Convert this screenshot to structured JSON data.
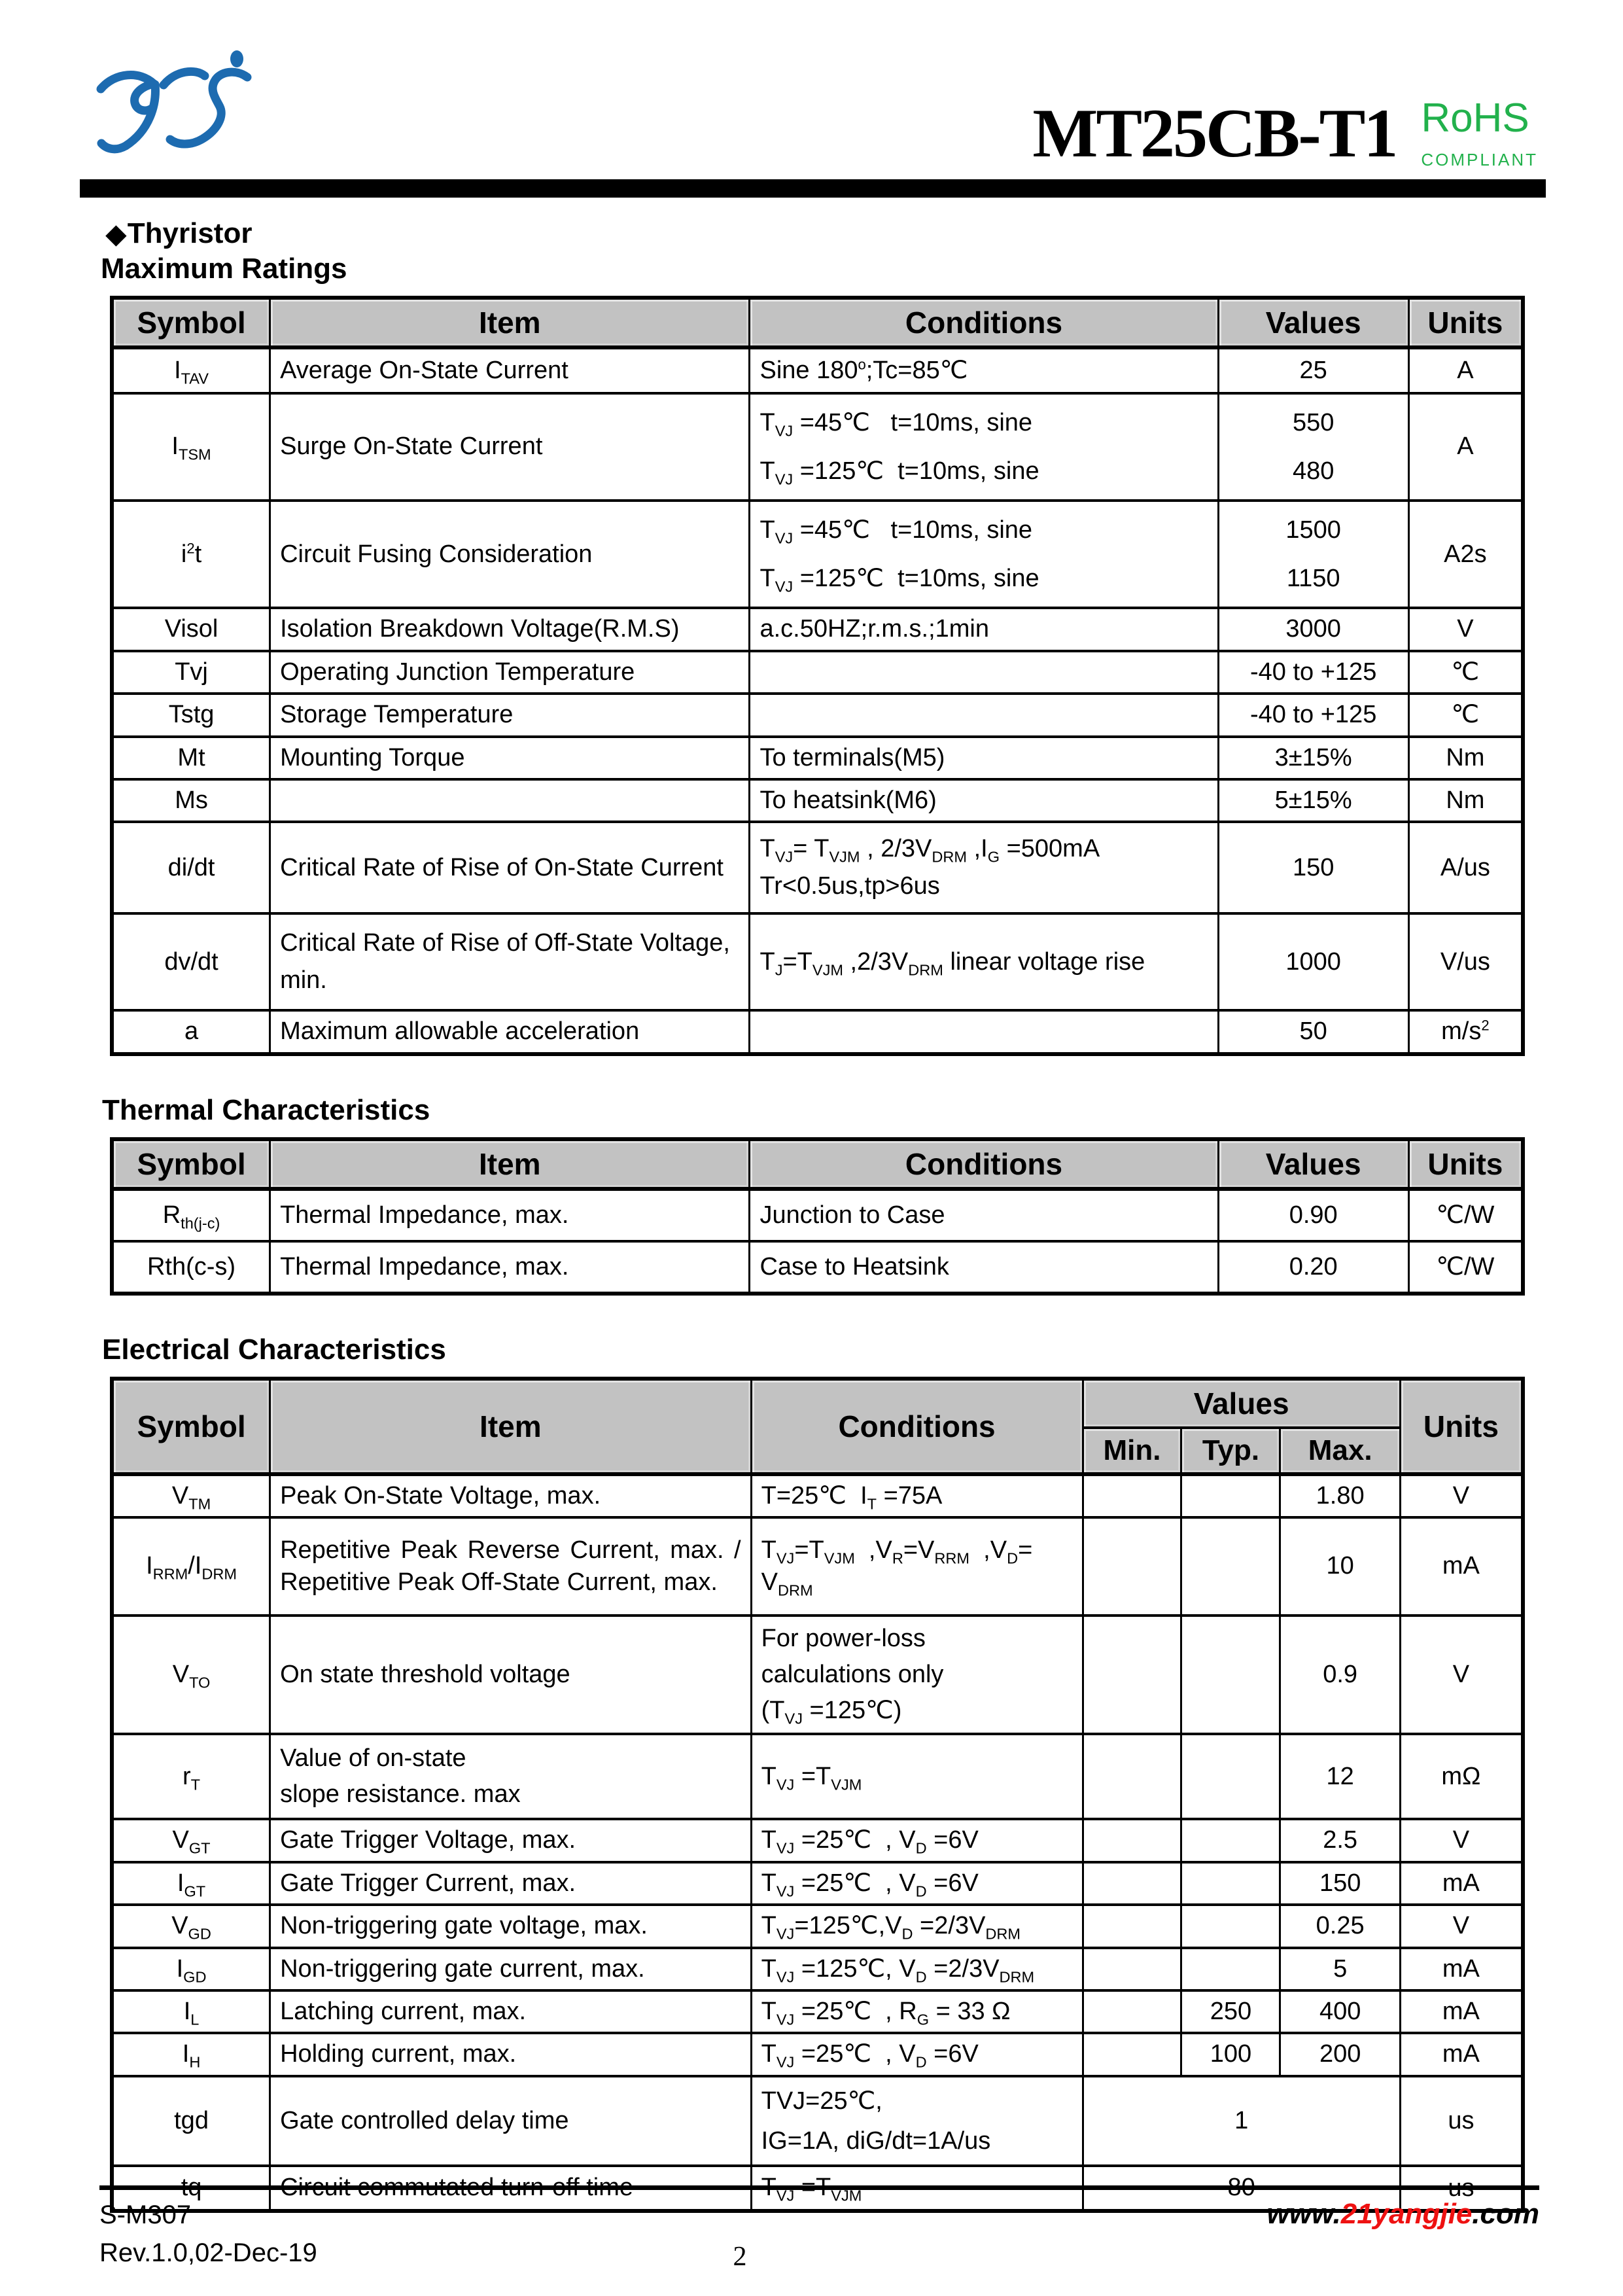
{
  "header": {
    "part_number": "MT25CB-T1",
    "rohs": "RoHS",
    "rohs_compliant": "COMPLIANT"
  },
  "section": {
    "bullet": "◆",
    "category": "Thyristor",
    "max_ratings_title": "Maximum Ratings",
    "thermal_title": "Thermal Characteristics",
    "electrical_title": "Electrical Characteristics"
  },
  "max_ratings": {
    "headers": {
      "symbol": "Symbol",
      "item": "Item",
      "conditions": "Conditions",
      "values": "Values",
      "units": "Units"
    },
    "rows": [
      {
        "sym": "I<sub>TAV</sub>",
        "item": "Average On-State Current",
        "cond": "Sine 180<sup>o</sup>;Tc=85℃",
        "val": "25",
        "unit": "A"
      },
      {
        "sym": "I<sub>TSM</sub>",
        "item": "Surge On-State Current",
        "cond": "T<sub>VJ</sub> =45℃&nbsp;&nbsp;&nbsp;t=10ms, sine<br>T<sub>VJ</sub> =125℃&nbsp;&nbsp;t=10ms, sine",
        "val": "550<br>480",
        "unit": "A"
      },
      {
        "sym": "i<sup>2</sup>t",
        "item": "Circuit Fusing Consideration",
        "cond": "T<sub>VJ</sub> =45℃&nbsp;&nbsp;&nbsp;t=10ms, sine<br>T<sub>VJ</sub> =125℃&nbsp;&nbsp;t=10ms, sine",
        "val": "1500<br>1150",
        "unit": "A2s"
      },
      {
        "sym": "Visol",
        "item": "Isolation Breakdown Voltage(R.M.S)",
        "cond": "a.c.50HZ;r.m.s.;1min",
        "val": "3000",
        "unit": "V"
      },
      {
        "sym": "Tvj",
        "item": "Operating Junction Temperature",
        "cond": "",
        "val": "-40 to +125",
        "unit": "℃"
      },
      {
        "sym": "Tstg",
        "item": "Storage Temperature",
        "cond": "",
        "val": "-40 to +125",
        "unit": "℃"
      },
      {
        "sym": "Mt",
        "item": "Mounting Torque",
        "cond": "To terminals(M5)",
        "val": "3±15%",
        "unit": "Nm"
      },
      {
        "sym": "Ms",
        "item": "",
        "cond": "To heatsink(M6)",
        "val": "5±15%",
        "unit": "Nm"
      },
      {
        "sym": "di/dt",
        "item": "Critical Rate of Rise of On-State Current",
        "cond": "T<sub>VJ</sub>= T<sub>VJM</sub> , 2/3V<sub>DRM</sub> ,I<sub>G</sub> =500mA<br>Tr&lt;0.5us,tp&gt;6us",
        "val": "150",
        "unit": "A/us"
      },
      {
        "sym": "dv/dt",
        "item": "Critical Rate of Rise of Off-State Voltage, min.",
        "cond": "T<sub>J</sub>=T<sub>VJM</sub> ,2/3V<sub>DRM</sub> linear voltage rise",
        "val": "1000",
        "unit": "V/us"
      },
      {
        "sym": "a",
        "item": "Maximum allowable acceleration",
        "cond": "",
        "val": "50",
        "unit": "m/s<sup>2</sup>"
      }
    ]
  },
  "thermal": {
    "headers": {
      "symbol": "Symbol",
      "item": "Item",
      "conditions": "Conditions",
      "values": "Values",
      "units": "Units"
    },
    "rows": [
      {
        "sym": "R<sub>th(j-c)</sub>",
        "item": "Thermal Impedance, max.",
        "cond": "Junction to Case",
        "val": "0.90",
        "unit": "℃/W"
      },
      {
        "sym": "Rth(c-s)",
        "item": "Thermal Impedance, max.",
        "cond": "Case to Heatsink",
        "val": "0.20",
        "unit": "℃/W"
      }
    ]
  },
  "electrical": {
    "headers": {
      "symbol": "Symbol",
      "item": "Item",
      "conditions": "Conditions",
      "values": "Values",
      "min": "Min.",
      "typ": "Typ.",
      "max": "Max.",
      "units": "Units"
    },
    "rows": [
      {
        "sym": "V<sub>TM</sub>",
        "item": "Peak On-State Voltage, max.",
        "cond": "T=25℃&nbsp; I<sub>T</sub> =75A",
        "min": "",
        "typ": "",
        "max": "1.80",
        "unit": "V"
      },
      {
        "sym": "I<sub>RRM</sub>/I<sub>DRM</sub>",
        "item": "Repetitive Peak Reverse Current, max. / Repetitive Peak Off-State Current, max.",
        "cond": "T<sub>VJ</sub>=T<sub>VJM</sub>&nbsp;&nbsp;,V<sub>R</sub>=V<sub>RRM</sub>&nbsp;&nbsp;,V<sub>D</sub>= V<sub>DRM</sub>",
        "min": "",
        "typ": "",
        "max": "10",
        "unit": "mA"
      },
      {
        "sym": "V<sub>TO</sub>",
        "item": "On state threshold voltage",
        "cond": "For power-loss<br>calculations only<br>(T<sub>VJ</sub> =125℃)",
        "min": "",
        "typ": "",
        "max": "0.9",
        "unit": "V"
      },
      {
        "sym": "r<sub>T</sub>",
        "item": "Value of on-state<br>slope resistance. max",
        "cond": "T<sub>VJ</sub> =T<sub>VJM</sub>",
        "min": "",
        "typ": "",
        "max": "12",
        "unit": "mΩ"
      },
      {
        "sym": "V<sub>GT</sub>",
        "item": "Gate Trigger Voltage, max.",
        "cond": "T<sub>VJ</sub> =25℃&nbsp; , V<sub>D</sub> =6V",
        "min": "",
        "typ": "",
        "max": "2.5",
        "unit": "V"
      },
      {
        "sym": "I<sub>GT</sub>",
        "item": "Gate Trigger Current, max.",
        "cond": "T<sub>VJ</sub> =25℃&nbsp; , V<sub>D</sub> =6V",
        "min": "",
        "typ": "",
        "max": "150",
        "unit": "mA"
      },
      {
        "sym": "V<sub>GD</sub>",
        "item": "Non-triggering gate voltage, max.",
        "cond": "T<sub>VJ</sub>=125℃,V<sub>D</sub> =2/3V<sub>DRM</sub>",
        "min": "",
        "typ": "",
        "max": "0.25",
        "unit": "V"
      },
      {
        "sym": "I<sub>GD</sub>",
        "item": "Non-triggering gate current, max.",
        "cond": "T<sub>VJ</sub> =125℃, V<sub>D</sub> =2/3V<sub>DRM</sub>",
        "min": "",
        "typ": "",
        "max": "5",
        "unit": "mA"
      },
      {
        "sym": "I<sub>L</sub>",
        "item": "Latching current, max.",
        "cond": "T<sub>VJ</sub> =25℃&nbsp; , R<sub>G</sub> = 33 Ω",
        "min": "",
        "typ": "250",
        "max": "400",
        "unit": "mA"
      },
      {
        "sym": "I<sub>H</sub>",
        "item": "Holding current, max.",
        "cond": "T<sub>VJ</sub> =25℃&nbsp; , V<sub>D</sub> =6V",
        "min": "",
        "typ": "100",
        "max": "200",
        "unit": "mA"
      },
      {
        "sym": "tgd",
        "item": "Gate controlled delay time",
        "cond": "TVJ=25℃,<br>IG=1A, diG/dt=1A/us",
        "val": "1",
        "unit": "us"
      },
      {
        "sym": "tq",
        "item": "Circuit commutated turn-off time",
        "cond": "T<sub>VJ</sub> =T<sub>VJM</sub>",
        "val": "80",
        "unit": "us"
      }
    ]
  },
  "footer": {
    "doc_number": "S-M307",
    "revision": "Rev.1.0,02-Dec-19",
    "page_number": "2",
    "website_prefix": "www.",
    "website_brand": "21yangjie",
    "website_suffix": ".com"
  },
  "colors": {
    "logo_blue": "#1d6bb0",
    "rohs_green": "#22b14c",
    "brand_red": "#ee1111",
    "table_header_gray": "#c2c2c2"
  }
}
